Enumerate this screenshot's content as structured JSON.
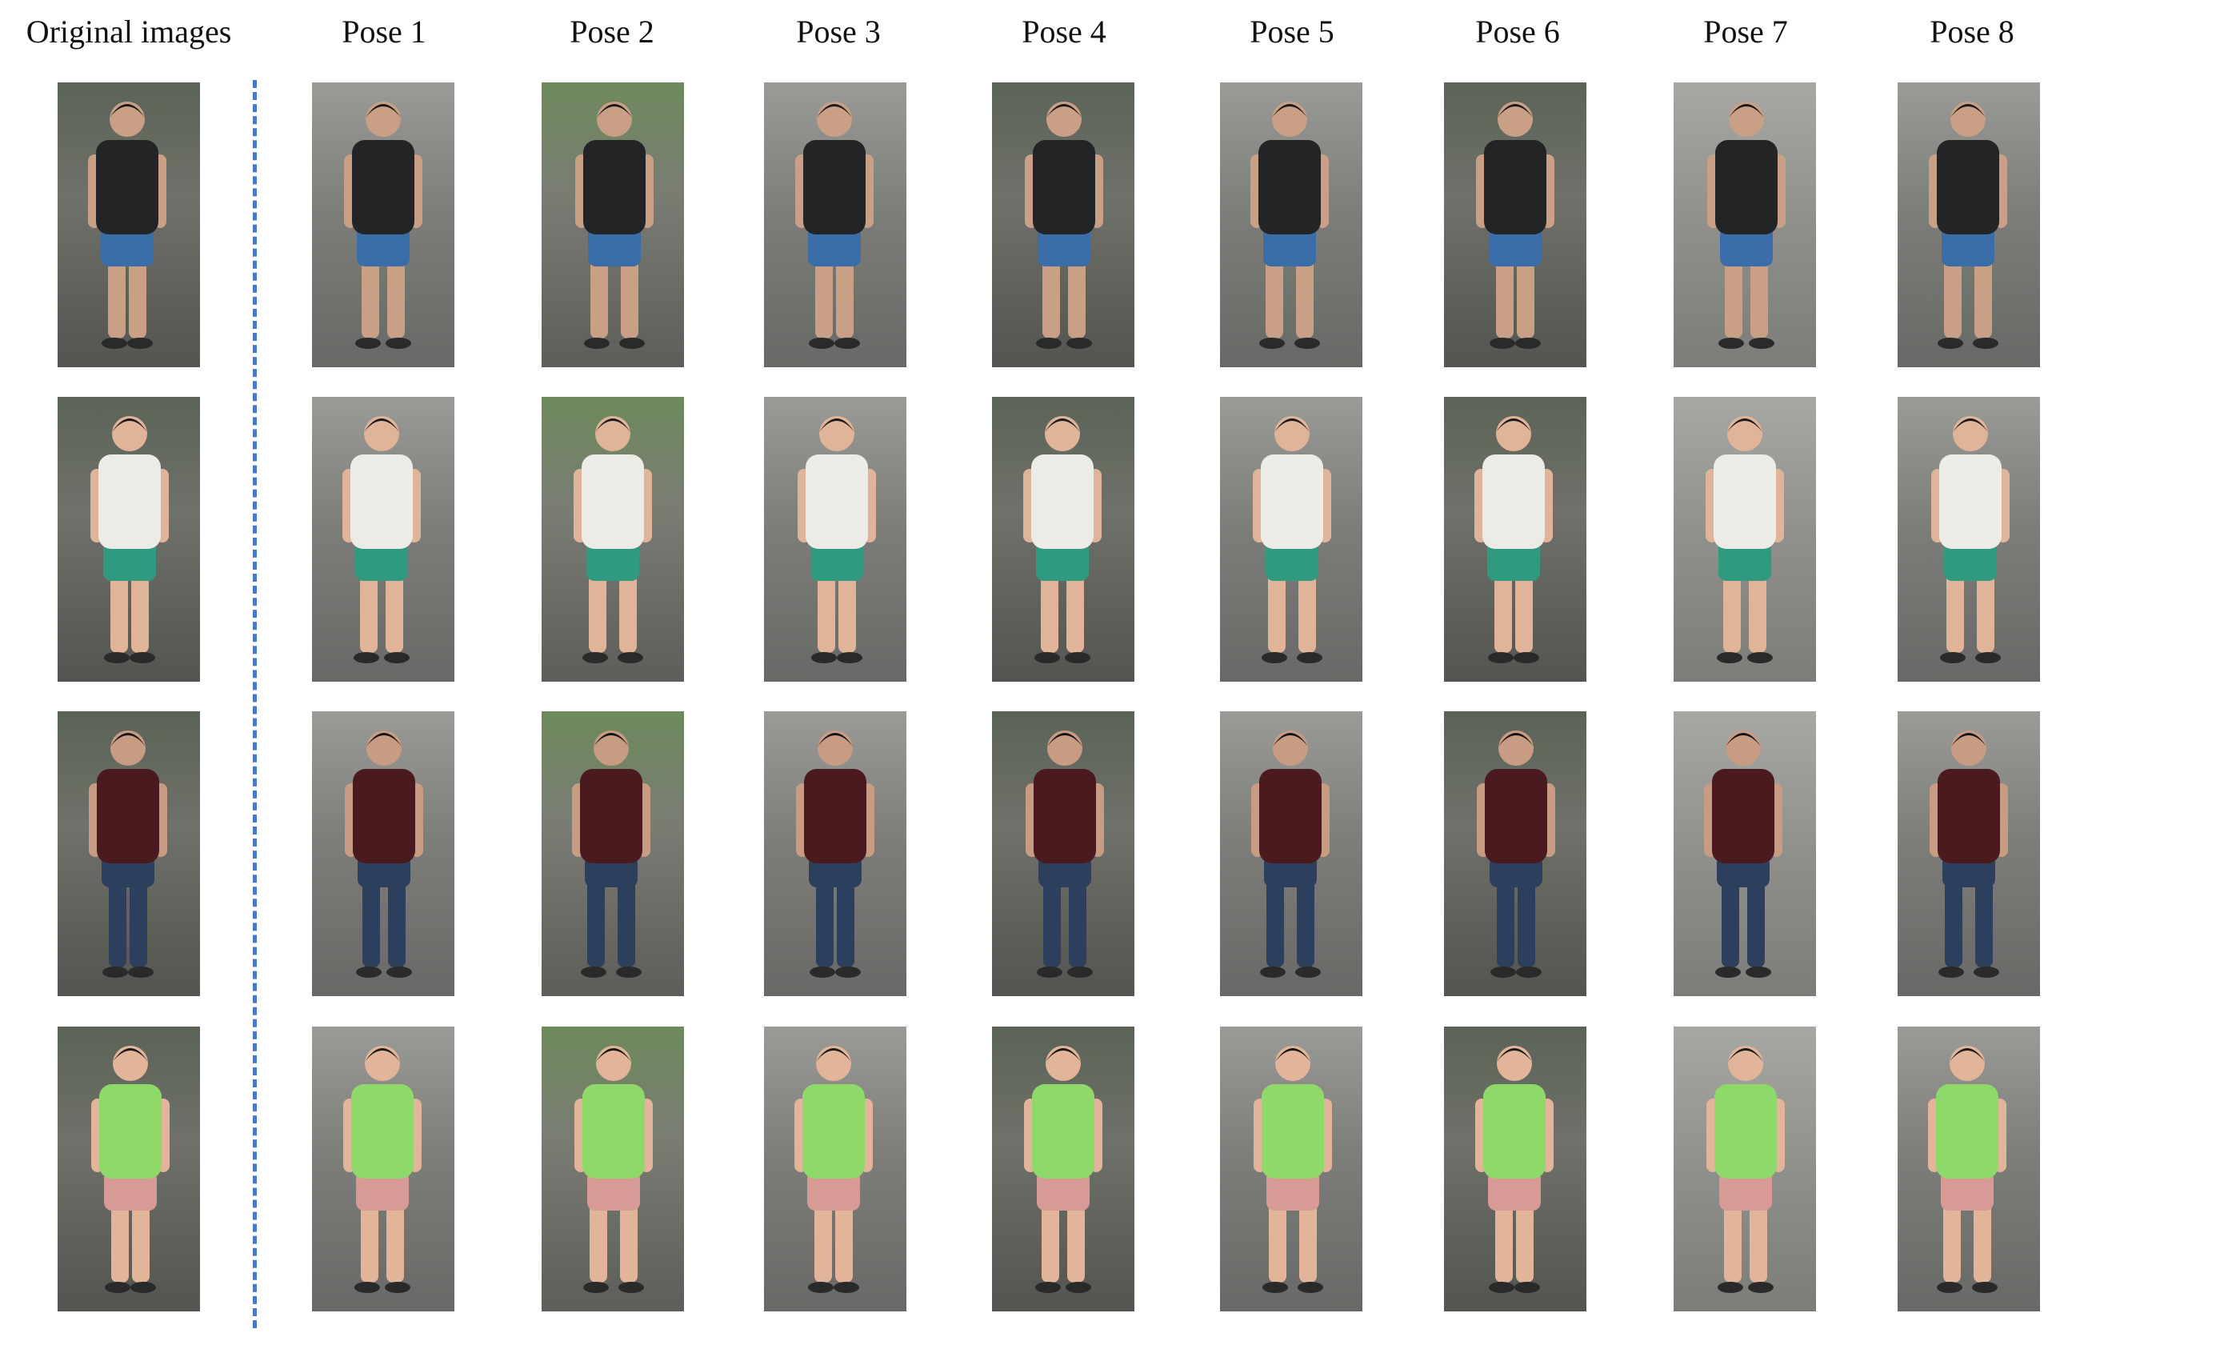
{
  "headers": {
    "original": "Original images",
    "poses": [
      "Pose 1",
      "Pose 2",
      "Pose 3",
      "Pose 4",
      "Pose 5",
      "Pose 6",
      "Pose 7",
      "Pose 8"
    ]
  },
  "colors": {
    "divider": "#4a78c8"
  },
  "rows": [
    {
      "shirt": "#222426",
      "shorts": "#3b6ea8",
      "long_pants": false,
      "skin": "#c9a085",
      "hair": "#1a1a1a"
    },
    {
      "shirt": "#ecebe6",
      "shorts": "#2f9a80",
      "long_pants": false,
      "skin": "#e0b499",
      "hair": "#1a1a1a"
    },
    {
      "shirt": "#4a1a1e",
      "shorts": "#2c3f5c",
      "long_pants": true,
      "skin": "#c89c82",
      "hair": "#141414"
    },
    {
      "shirt": "#8fd86a",
      "shorts": "#d89a95",
      "long_pants": false,
      "skin": "#e2b59a",
      "hair": "#1a1a1a"
    }
  ],
  "tile_styles": [
    "dark",
    "gray",
    "greenish",
    "gray",
    "dark",
    "gray",
    "dark",
    "blurred",
    "gray"
  ]
}
